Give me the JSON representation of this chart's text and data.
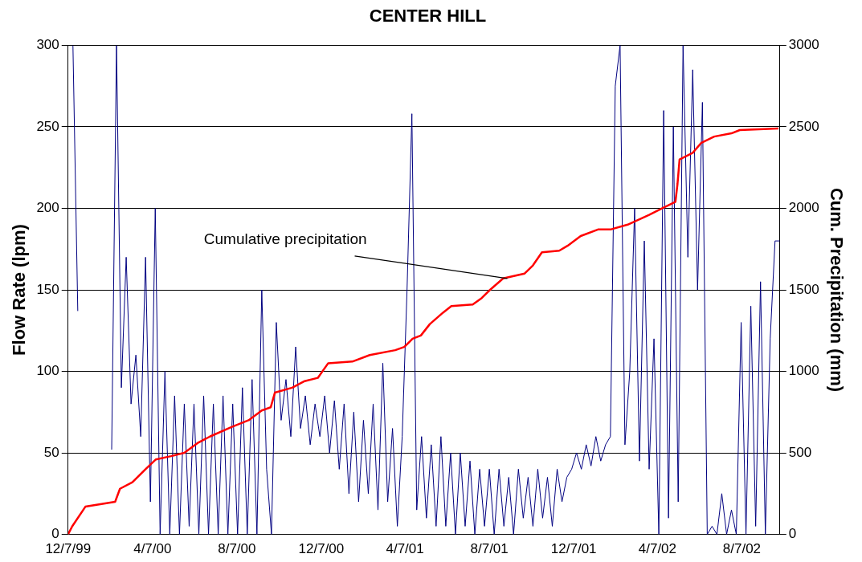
{
  "chart_data": {
    "type": "line",
    "title": "CENTER HILL",
    "ylabel": "Flow Rate (lpm)",
    "y2label": "Cum. Precipitation (mm)",
    "xlim": [
      "1999-12-07",
      "2002-10-01"
    ],
    "xticks": [
      {
        "value": "1999-12-07",
        "label": "12/7/99"
      },
      {
        "value": "2000-04-07",
        "label": "4/7/00"
      },
      {
        "value": "2000-08-07",
        "label": "8/7/00"
      },
      {
        "value": "2000-12-07",
        "label": "12/7/00"
      },
      {
        "value": "2001-04-07",
        "label": "4/7/01"
      },
      {
        "value": "2001-08-07",
        "label": "8/7/01"
      },
      {
        "value": "2001-12-07",
        "label": "12/7/01"
      },
      {
        "value": "2002-04-07",
        "label": "4/7/02"
      },
      {
        "value": "2002-08-07",
        "label": "8/7/02"
      }
    ],
    "ylim": [
      0,
      300
    ],
    "yticks": [
      0,
      50,
      100,
      150,
      200,
      250,
      300
    ],
    "y2lim": [
      0,
      3000
    ],
    "y2ticks": [
      0,
      500,
      1000,
      1500,
      2000,
      2500,
      3000
    ],
    "grid": "y",
    "legend": false,
    "marker": "none",
    "line_style": "solid",
    "annotations": [
      {
        "text": "Cumulative precipitation",
        "x": "2001-09-02",
        "y": 157
      }
    ],
    "series": [
      {
        "color": "#000080",
        "x": [
          "1999-12-14",
          "1999-12-21",
          "1999-12-28",
          "2000-01-04",
          "2000-01-11",
          "2000-01-18",
          "2000-01-25",
          "2000-02-01",
          "2000-02-08",
          "2000-02-15",
          "2000-02-22",
          "2000-02-29",
          "2000-03-07",
          "2000-03-14",
          "2000-03-21",
          "2000-03-28",
          "2000-04-04",
          "2000-04-11",
          "2000-04-18",
          "2000-04-25",
          "2000-05-02",
          "2000-05-09",
          "2000-05-16",
          "2000-05-23",
          "2000-05-30",
          "2000-06-06",
          "2000-06-13",
          "2000-06-20",
          "2000-06-27",
          "2000-07-04",
          "2000-07-11",
          "2000-07-18",
          "2000-07-25",
          "2000-08-01",
          "2000-08-08",
          "2000-08-15",
          "2000-08-22",
          "2000-08-29",
          "2000-09-05",
          "2000-09-12",
          "2000-09-19",
          "2000-09-26",
          "2000-10-03",
          "2000-10-10",
          "2000-10-17",
          "2000-10-24",
          "2000-10-31",
          "2000-11-07",
          "2000-11-14",
          "2000-11-21",
          "2000-11-28",
          "2000-12-05",
          "2000-12-12",
          "2000-12-19",
          "2000-12-26",
          "2001-01-02",
          "2001-01-09",
          "2001-01-16",
          "2001-01-23",
          "2001-01-30",
          "2001-02-06",
          "2001-02-13",
          "2001-02-20",
          "2001-02-27",
          "2001-03-06",
          "2001-03-13",
          "2001-03-20",
          "2001-03-27",
          "2001-04-03",
          "2001-04-10",
          "2001-04-17",
          "2001-04-24",
          "2001-05-01",
          "2001-05-08",
          "2001-05-15",
          "2001-05-22",
          "2001-05-29",
          "2001-06-05",
          "2001-06-12",
          "2001-06-19",
          "2001-06-26",
          "2001-07-03",
          "2001-07-10",
          "2001-07-17",
          "2001-07-24",
          "2001-07-31",
          "2001-08-07",
          "2001-08-14",
          "2001-08-21",
          "2001-08-28",
          "2001-09-04",
          "2001-09-11",
          "2001-09-18",
          "2001-09-25",
          "2001-10-02",
          "2001-10-09",
          "2001-10-16",
          "2001-10-23",
          "2001-10-30",
          "2001-11-06",
          "2001-11-13",
          "2001-11-20",
          "2001-11-27",
          "2001-12-04",
          "2001-12-11",
          "2001-12-18",
          "2001-12-25",
          "2002-01-01",
          "2002-01-08",
          "2002-01-15",
          "2002-01-22",
          "2002-01-29",
          "2002-02-05",
          "2002-02-12",
          "2002-02-19",
          "2002-02-26",
          "2002-03-05",
          "2002-03-12",
          "2002-03-19",
          "2002-03-26",
          "2002-04-02",
          "2002-04-09",
          "2002-04-16",
          "2002-04-23",
          "2002-04-30",
          "2002-05-07",
          "2002-05-14",
          "2002-05-21",
          "2002-05-28",
          "2002-06-04",
          "2002-06-11",
          "2002-06-18",
          "2002-06-25",
          "2002-07-02",
          "2002-07-09",
          "2002-07-16",
          "2002-07-23",
          "2002-07-30",
          "2002-08-06",
          "2002-08-13",
          "2002-08-20",
          "2002-08-27",
          "2002-09-03",
          "2002-09-10",
          "2002-09-17",
          "2002-09-24",
          "2002-10-01"
        ],
        "values": [
          300,
          137,
          null,
          null,
          null,
          null,
          null,
          null,
          52,
          300,
          90,
          170,
          80,
          110,
          60,
          170,
          20,
          200,
          0,
          100,
          0,
          85,
          0,
          80,
          5,
          80,
          0,
          85,
          0,
          80,
          0,
          85,
          0,
          80,
          0,
          90,
          0,
          95,
          0,
          150,
          40,
          0,
          130,
          70,
          95,
          60,
          115,
          65,
          85,
          55,
          80,
          60,
          85,
          50,
          82,
          40,
          80,
          25,
          75,
          20,
          70,
          25,
          80,
          15,
          105,
          20,
          65,
          5,
          60,
          150,
          258,
          15,
          60,
          10,
          55,
          5,
          60,
          5,
          50,
          0,
          50,
          5,
          45,
          0,
          40,
          5,
          40,
          0,
          40,
          5,
          35,
          0,
          40,
          10,
          35,
          5,
          40,
          10,
          35,
          5,
          40,
          20,
          35,
          40,
          50,
          40,
          55,
          42,
          60,
          45,
          55,
          60,
          275,
          300,
          55,
          100,
          200,
          45,
          180,
          40,
          120,
          0,
          260,
          10,
          250,
          20,
          300,
          170,
          285,
          150,
          265,
          0,
          5,
          0,
          25,
          0,
          15,
          0,
          130,
          0,
          140,
          5,
          155,
          0,
          120,
          180,
          180
        ]
      },
      {
        "axis": "y2",
        "color": "#ff0000",
        "x": [
          "1999-12-07",
          "1999-12-13",
          "2000-01-01",
          "2000-02-13",
          "2000-02-20",
          "2000-03-09",
          "2000-03-28",
          "2000-04-12",
          "2000-05-04",
          "2000-05-23",
          "2000-06-11",
          "2000-06-29",
          "2000-07-31",
          "2000-08-24",
          "2000-09-12",
          "2000-09-25",
          "2000-10-01",
          "2000-10-26",
          "2000-11-13",
          "2000-12-02",
          "2000-12-17",
          "2001-01-21",
          "2001-02-15",
          "2001-03-24",
          "2001-04-06",
          "2001-04-18",
          "2001-04-30",
          "2001-05-13",
          "2001-06-01",
          "2001-06-13",
          "2001-07-14",
          "2001-07-27",
          "2001-08-08",
          "2001-08-27",
          "2001-09-27",
          "2001-10-09",
          "2001-10-22",
          "2001-11-16",
          "2001-11-28",
          "2001-12-17",
          "2002-01-11",
          "2002-01-29",
          "2002-02-23",
          "2002-03-26",
          "2002-04-14",
          "2002-05-03",
          "2002-05-06",
          "2002-05-09",
          "2002-05-28",
          "2002-06-09",
          "2002-06-28",
          "2002-07-23",
          "2002-08-04",
          "2002-09-29"
        ],
        "values": [
          0,
          50,
          170,
          200,
          280,
          320,
          400,
          460,
          480,
          500,
          560,
          600,
          660,
          700,
          760,
          780,
          870,
          900,
          940,
          960,
          1050,
          1060,
          1100,
          1130,
          1150,
          1200,
          1220,
          1290,
          1360,
          1400,
          1410,
          1450,
          1500,
          1570,
          1600,
          1650,
          1730,
          1740,
          1770,
          1830,
          1870,
          1870,
          1900,
          1960,
          2000,
          2040,
          2150,
          2300,
          2340,
          2400,
          2440,
          2460,
          2480,
          2490
        ]
      }
    ]
  }
}
